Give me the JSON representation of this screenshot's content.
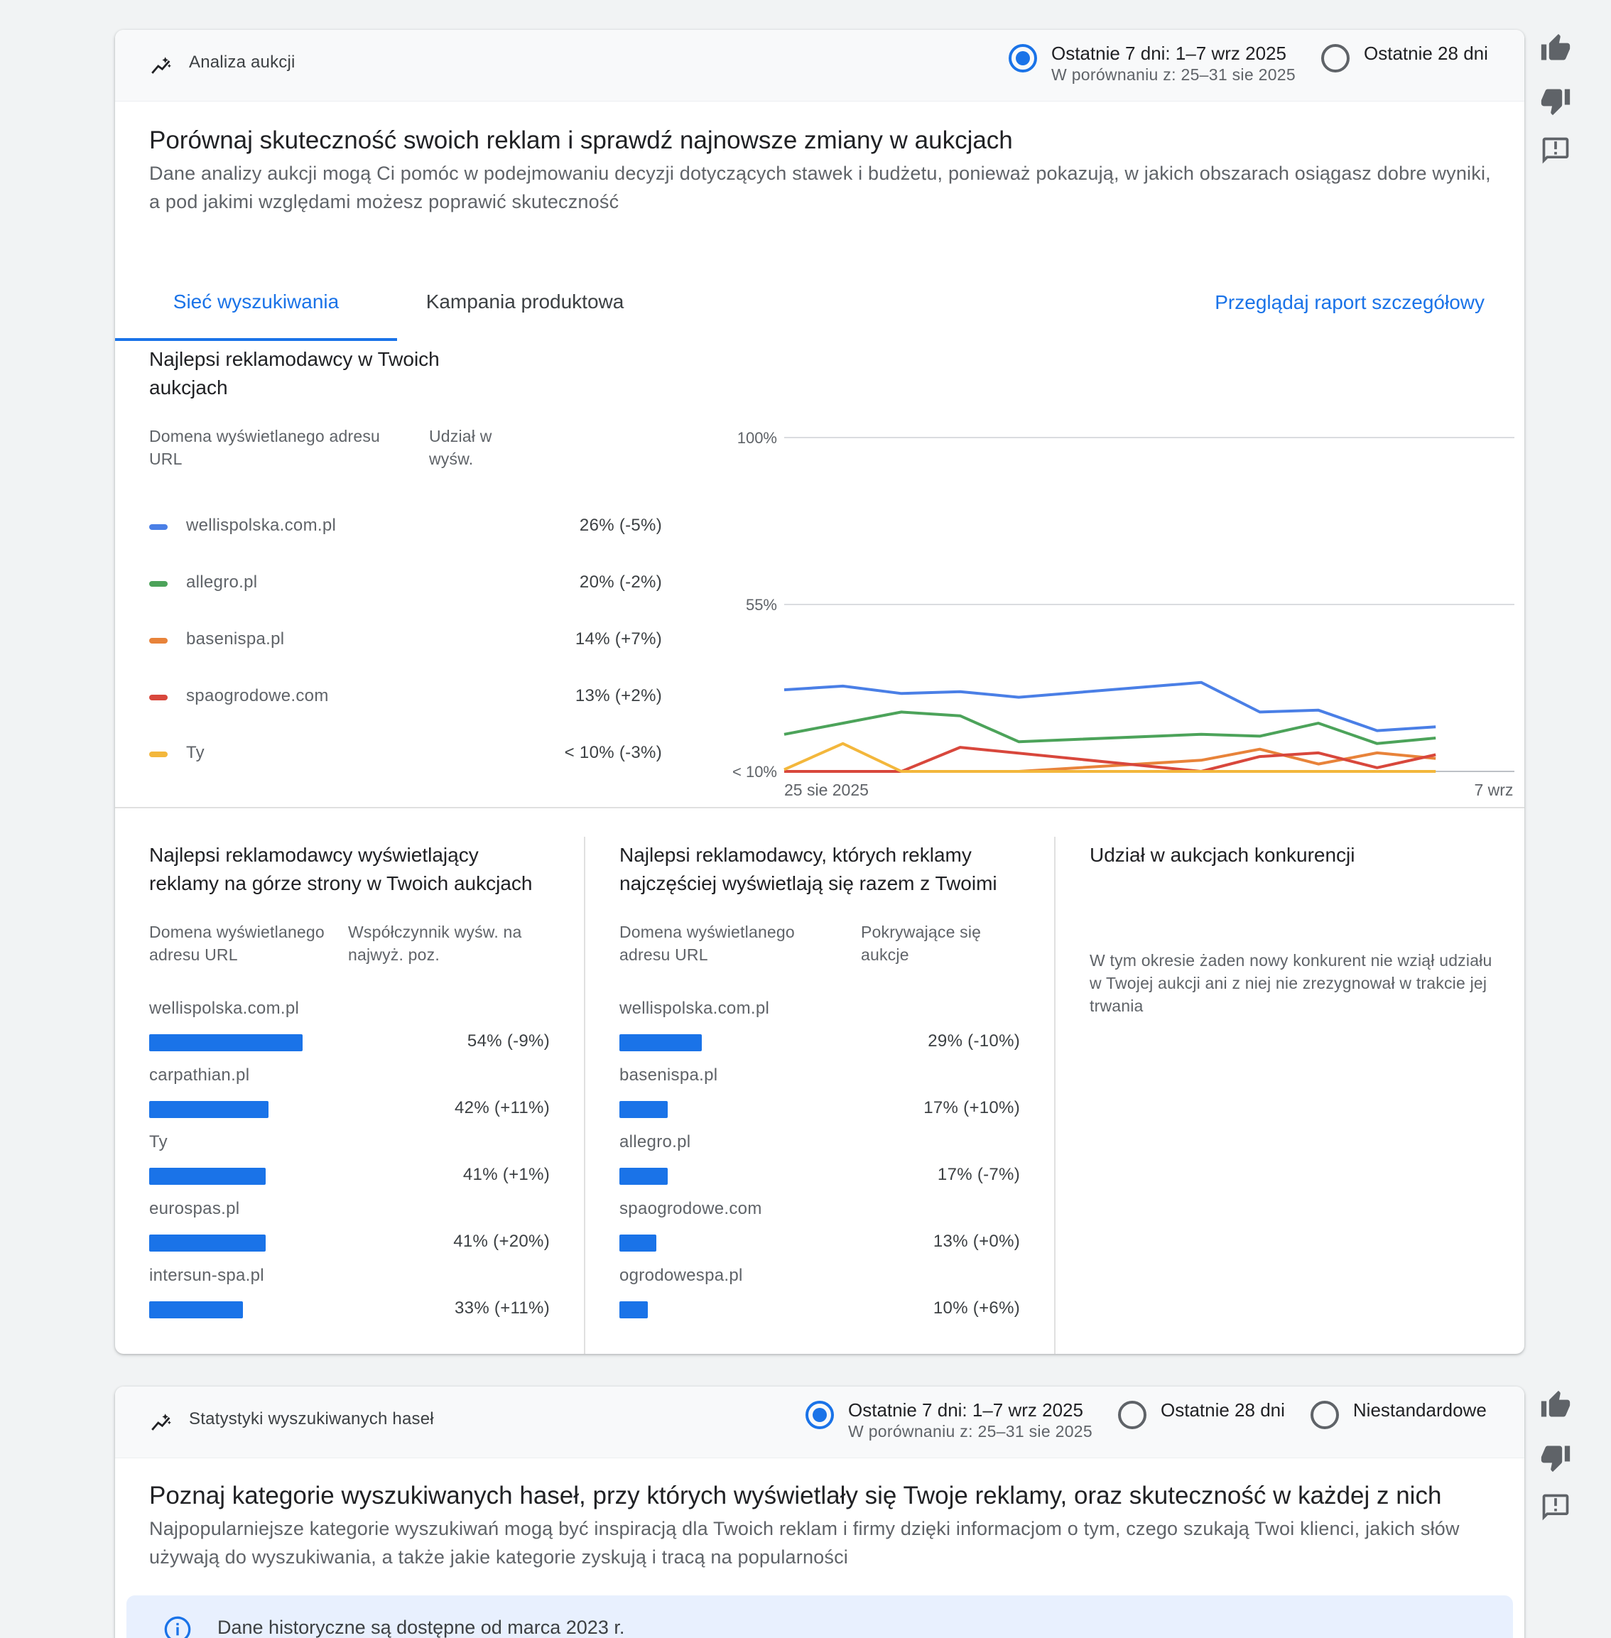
{
  "auction_card": {
    "header_title": "Analiza aukcji",
    "radio_7d_label": "Ostatnie 7 dni: 1–7 wrz 2025",
    "radio_7d_sub": "W porównaniu z: 25–31 sie 2025",
    "radio_28d_label": "Ostatnie 28 dni",
    "selected_range": "Ostatnie 7 dni",
    "headline": "Porównaj skuteczność swoich reklam i sprawdź najnowsze zmiany w aukcjach",
    "subline": "Dane analizy aukcji mogą Ci pomóc w podejmowaniu decyzji dotyczących stawek i budżetu, ponieważ pokazują, w jakich obszarach osiągasz dobre wyniki, a pod jakimi względami możesz poprawić skuteczność",
    "tabs": [
      {
        "label": "Sieć wyszukiwania",
        "active": true
      },
      {
        "label": "Kampania produktowa",
        "active": false
      }
    ],
    "detail_link": "Przeglądaj raport szczegółowy",
    "top_advertisers": {
      "title": "Najlepsi reklamodawcy w Twoich aukcjach",
      "col_domain": "Domena wyświetlanego adresu URL",
      "col_share": "Udział w wyśw.",
      "rows": [
        {
          "name": "wellispolska.com.pl",
          "value": "26% (-5%)",
          "color": "#4a7fe6"
        },
        {
          "name": "allegro.pl",
          "value": "20% (-2%)",
          "color": "#4ca35a"
        },
        {
          "name": "basenispa.pl",
          "value": "14% (+7%)",
          "color": "#e8833a"
        },
        {
          "name": "spaogrodowe.com",
          "value": "13% (+2%)",
          "color": "#d8473c"
        },
        {
          "name": "Ty",
          "value": "< 10% (-3%)",
          "color": "#f3b73c"
        }
      ]
    },
    "top_of_page": {
      "title": "Najlepsi reklamodawcy wyświetlający reklamy na górze strony w Twoich aukcjach",
      "col_domain": "Domena wyświetlanego adresu URL",
      "col_rate": "Współczynnik wyśw. na najwyż. poz.",
      "rows": [
        {
          "name": "wellispolska.com.pl",
          "value": "54% (-9%)",
          "pct": 54
        },
        {
          "name": "carpathian.pl",
          "value": "42% (+11%)",
          "pct": 42
        },
        {
          "name": "Ty",
          "value": "41% (+1%)",
          "pct": 41
        },
        {
          "name": "eurospas.pl",
          "value": "41% (+20%)",
          "pct": 41
        },
        {
          "name": "intersun-spa.pl",
          "value": "33% (+11%)",
          "pct": 33
        }
      ]
    },
    "overlap": {
      "title": "Najlepsi reklamodawcy, których reklamy najczęściej wyświetlają się razem z Twoimi",
      "col_domain": "Domena wyświetlanego adresu URL",
      "col_overlap": "Pokrywające się aukcje",
      "rows": [
        {
          "name": "wellispolska.com.pl",
          "value": "29% (-10%)",
          "pct": 29
        },
        {
          "name": "basenispa.pl",
          "value": "17% (+10%)",
          "pct": 17
        },
        {
          "name": "allegro.pl",
          "value": "17% (-7%)",
          "pct": 17
        },
        {
          "name": "spaogrodowe.com",
          "value": "13% (+0%)",
          "pct": 13
        },
        {
          "name": "ogrodowespa.pl",
          "value": "10% (+6%)",
          "pct": 10
        }
      ]
    },
    "competition": {
      "title": "Udział w aukcjach konkurencji",
      "text": "W tym okresie żaden nowy konkurent nie wziął udziału w Twojej aukcji ani z niej nie zrezygnował w trakcie jej trwania"
    }
  },
  "chart_data": {
    "type": "line",
    "x_start_label": "25 sie 2025",
    "x_end_label": "7 wrz 2025",
    "y_ticks": [
      "100%",
      "55%",
      "< 10%"
    ],
    "ylim": [
      10,
      100
    ],
    "grid": true,
    "categories": [
      "25 sie",
      "26 sie",
      "27 sie",
      "28 sie",
      "29 sie",
      "30 sie",
      "31 sie",
      "1 wrz",
      "2 wrz",
      "3 wrz",
      "4 wrz",
      "5 wrz",
      "6 wrz",
      "7 wrz"
    ],
    "series": [
      {
        "name": "wellispolska.com.pl",
        "color": "#4a7fe6",
        "values": [
          32,
          33,
          31,
          31.5,
          30,
          null,
          null,
          34,
          26,
          26.5,
          21,
          22,
          null,
          null
        ]
      },
      {
        "name": "allegro.pl",
        "color": "#4ca35a",
        "values": [
          20,
          23,
          26,
          25,
          18,
          null,
          null,
          20,
          19.5,
          23,
          17.5,
          19,
          null,
          null
        ]
      },
      {
        "name": "basenispa.pl",
        "color": "#e8833a",
        "values": [
          10,
          10,
          10,
          10,
          10,
          null,
          null,
          13,
          16,
          12,
          15,
          13.5,
          null,
          null
        ]
      },
      {
        "name": "spaogrodowe.com",
        "color": "#d8473c",
        "values": [
          10,
          10,
          10,
          16.5,
          null,
          null,
          null,
          10,
          14,
          15,
          11,
          14.5,
          null,
          null
        ]
      },
      {
        "name": "Ty",
        "color": "#f3b73c",
        "values": [
          10.5,
          17.5,
          10,
          10,
          10,
          null,
          null,
          10,
          10,
          10,
          10,
          10,
          null,
          null
        ]
      }
    ]
  },
  "search_card": {
    "header_title": "Statystyki wyszukiwanych haseł",
    "radio_7d_label": "Ostatnie 7 dni: 1–7 wrz 2025",
    "radio_7d_sub": "W porównaniu z: 25–31 sie 2025",
    "radio_28d_label": "Ostatnie 28 dni",
    "radio_custom_label": "Niestandardowe",
    "headline": "Poznaj kategorie wyszukiwanych haseł, przy których wyświetlały się Twoje reklamy, oraz skuteczność w każdej z nich",
    "subline": "Najpopularniejsze kategorie wyszukiwań mogą być inspiracją dla Twoich reklam i firmy dzięki informacjom o tym, czego szukają Twoi klienci, jakich słów używają do wyszukiwania, a także jakie kategorie zyskują i tracą na popularności",
    "info_text": "Dane historyczne są dostępne od marca 2023 r."
  }
}
